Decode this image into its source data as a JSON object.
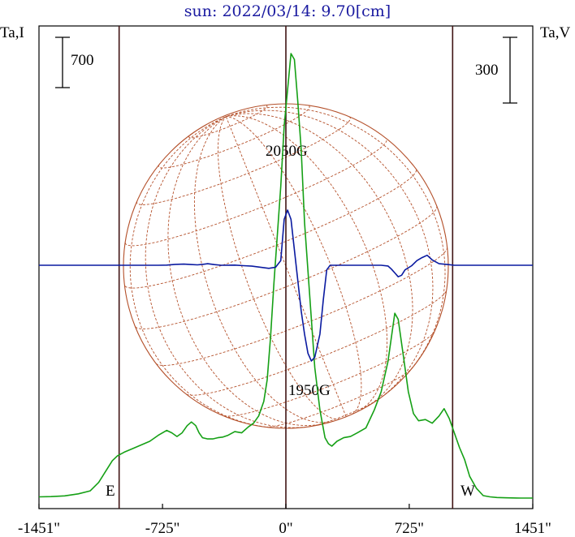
{
  "chart_data": {
    "type": "line",
    "title": "sun: 2022/03/14: 9.70[cm]",
    "y_left_label": "Ta,I",
    "y_right_label": "Ta,V",
    "scale_bar_left": "700",
    "scale_bar_right": "300",
    "x_ticks": [
      "-1451\"",
      "-725\"",
      "0\"",
      "725\"",
      "1451\""
    ],
    "xlim": [
      -1451,
      1451
    ],
    "limb_labels": {
      "east": "E",
      "west": "W"
    },
    "limb_positions": [
      -980,
      980
    ],
    "annotations": [
      "2050G",
      "1950G"
    ],
    "colors": {
      "intensity": "#15a015",
      "polarization": "#0a1aa0",
      "disk": "#b4502a",
      "vlines": "#401414",
      "title": "#1a1aa0"
    },
    "series": [
      {
        "key": "I",
        "x": [
          -1451,
          -1380,
          -1300,
          -1220,
          -1150,
          -1100,
          -1060,
          -1020,
          -990,
          -950,
          -900,
          -850,
          -800,
          -750,
          -700,
          -670,
          -640,
          -610,
          -580,
          -555,
          -530,
          -510,
          -490,
          -460,
          -430,
          -400,
          -370,
          -340,
          -300,
          -260,
          -220,
          -190,
          -160,
          -130,
          -110,
          -90,
          -70,
          -50,
          -30,
          -10,
          10,
          30,
          50,
          70,
          90,
          110,
          140,
          170,
          200,
          230,
          250,
          270,
          300,
          340,
          380,
          420,
          470,
          520,
          560,
          600,
          620,
          640,
          660,
          690,
          720,
          750,
          780,
          820,
          860,
          900,
          930,
          960,
          990,
          1020,
          1050,
          1080,
          1120,
          1160,
          1200,
          1240,
          1300,
          1380,
          1451
        ],
        "values": [
          30,
          32,
          38,
          55,
          80,
          150,
          240,
          330,
          370,
          400,
          430,
          460,
          490,
          540,
          580,
          560,
          530,
          560,
          620,
          650,
          620,
          560,
          520,
          510,
          510,
          520,
          525,
          540,
          570,
          560,
          610,
          640,
          700,
          820,
          1000,
          1350,
          1800,
          2200,
          2600,
          3100,
          3400,
          3700,
          3650,
          3300,
          2900,
          2300,
          1700,
          1100,
          750,
          520,
          470,
          450,
          490,
          520,
          530,
          560,
          600,
          750,
          900,
          1150,
          1350,
          1550,
          1500,
          1200,
          900,
          720,
          660,
          670,
          640,
          700,
          760,
          680,
          560,
          440,
          340,
          200,
          100,
          40,
          30,
          25,
          22,
          20,
          20
        ]
      },
      {
        "key": "V",
        "x": [
          -1451,
          -1100,
          -990,
          -750,
          -700,
          -650,
          -600,
          -560,
          -520,
          -490,
          -460,
          -420,
          -380,
          -300,
          -250,
          -200,
          -150,
          -100,
          -60,
          -30,
          -10,
          10,
          30,
          50,
          70,
          90,
          110,
          130,
          150,
          170,
          200,
          220,
          240,
          260,
          280,
          300,
          330,
          400,
          500,
          560,
          600,
          620,
          640,
          660,
          680,
          700,
          740,
          770,
          800,
          830,
          860,
          900,
          950,
          990,
          1100,
          1451
        ],
        "values": [
          0,
          0,
          0,
          0,
          2,
          12,
          15,
          10,
          5,
          12,
          20,
          8,
          0,
          2,
          -5,
          -12,
          -25,
          -40,
          -25,
          60,
          600,
          720,
          600,
          200,
          -200,
          -600,
          -900,
          -1150,
          -1250,
          -1200,
          -900,
          -450,
          -60,
          0,
          0,
          0,
          0,
          0,
          0,
          0,
          -10,
          -50,
          -100,
          -150,
          -130,
          -60,
          -5,
          60,
          100,
          130,
          70,
          20,
          10,
          0,
          0,
          0
        ]
      }
    ]
  }
}
